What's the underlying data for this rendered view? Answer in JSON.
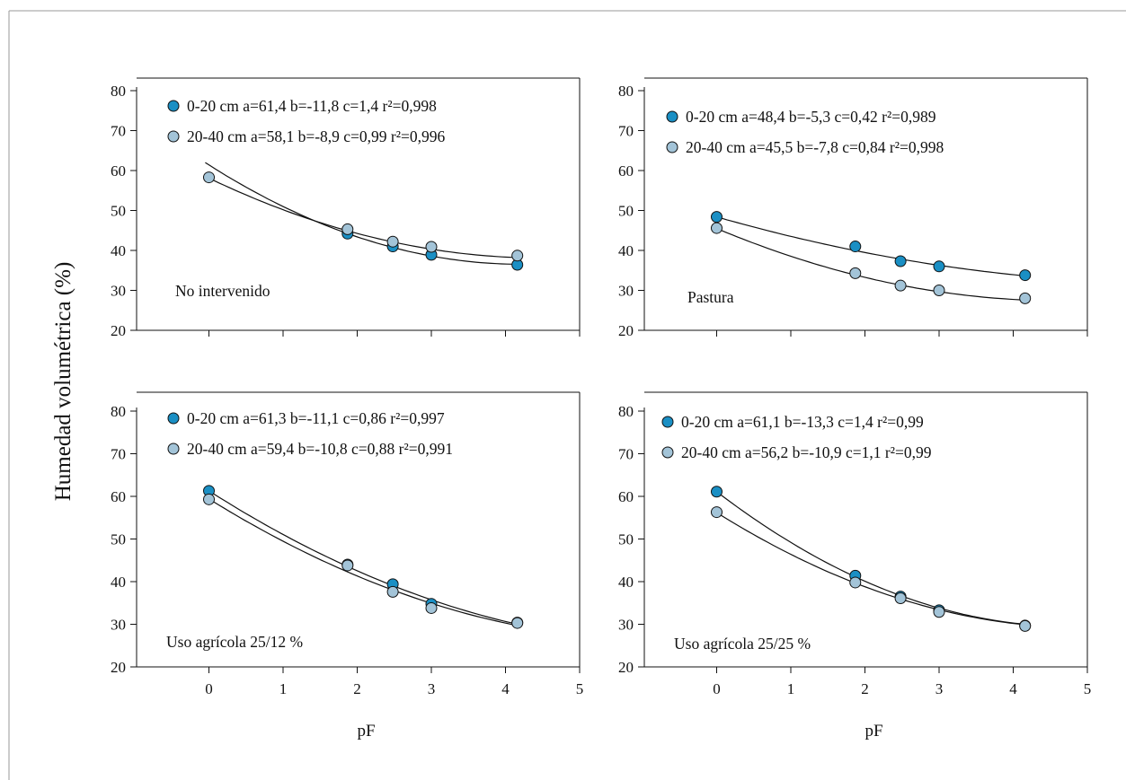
{
  "figure": {
    "ylabel": "Humedad volumétrica (%)"
  },
  "colors": {
    "series_0_20": "#1a8fc4",
    "series_20_40": "#a3c4d8",
    "curve": "#111111",
    "marker_edge": "#111111"
  },
  "chart_data": [
    {
      "type": "scatter",
      "label": "No intervenido",
      "xlabel": "",
      "xlim": [
        -1,
        5
      ],
      "ylim": [
        20,
        80
      ],
      "xticks": [
        0,
        1,
        2,
        3,
        4,
        5
      ],
      "yticks": [
        20,
        30,
        40,
        50,
        60,
        70,
        80
      ],
      "show_xtick_labels": false,
      "legend_position": "top-left",
      "series": [
        {
          "name": "0-20 cm",
          "legend_text": "0-20 cm a=61,4  b=-11,8  c=1,4  r²=0,998",
          "color": "#1a8fc4",
          "x": [
            1.87,
            2.48,
            3.0,
            4.16
          ],
          "y": [
            44.2,
            41.0,
            38.9,
            36.4
          ],
          "fit": {
            "a": 61.4,
            "b": -11.8,
            "c": 1.4,
            "r2": 0.998
          }
        },
        {
          "name": "20-40 cm",
          "legend_text": "20-40 cm  a=58,1  b=-8,9  c=0,99  r²=0,996",
          "color": "#a3c4d8",
          "x": [
            0,
            1.87,
            2.48,
            3.0,
            4.16
          ],
          "y": [
            58.3,
            45.3,
            42.2,
            40.9,
            38.7
          ],
          "fit": {
            "a": 58.1,
            "b": -8.9,
            "c": 0.99,
            "r2": 0.996
          }
        }
      ]
    },
    {
      "type": "scatter",
      "label": "Pastura",
      "xlabel": "",
      "xlim": [
        -1,
        5
      ],
      "ylim": [
        20,
        80
      ],
      "xticks": [
        0,
        1,
        2,
        3,
        4,
        5
      ],
      "yticks": [
        20,
        30,
        40,
        50,
        60,
        70,
        80
      ],
      "show_xtick_labels": false,
      "legend_position": "top-left",
      "series": [
        {
          "name": "0-20 cm",
          "legend_text": "0-20 cm  a=48,4  b=-5,3  c=0,42  r²=0,989",
          "color": "#1a8fc4",
          "x": [
            0,
            1.87,
            2.48,
            3.0,
            4.16
          ],
          "y": [
            48.4,
            41.0,
            37.3,
            36.0,
            33.8
          ],
          "fit": {
            "a": 48.4,
            "b": -5.3,
            "c": 0.42,
            "r2": 0.989
          }
        },
        {
          "name": "20-40 cm",
          "legend_text": "20-40 cm  a=45,5  b=-7,8  c=0,84  r²=0,998",
          "color": "#a3c4d8",
          "x": [
            0,
            1.87,
            2.48,
            3.0,
            4.16
          ],
          "y": [
            45.6,
            34.3,
            31.2,
            30.0,
            28.0
          ],
          "fit": {
            "a": 45.5,
            "b": -7.8,
            "c": 0.84,
            "r2": 0.998
          }
        }
      ]
    },
    {
      "type": "scatter",
      "label": "Uso agrícola 25/12 %",
      "xlabel": "pF",
      "xlim": [
        -1,
        5
      ],
      "ylim": [
        20,
        80
      ],
      "xticks": [
        0,
        1,
        2,
        3,
        4,
        5
      ],
      "yticks": [
        20,
        30,
        40,
        50,
        60,
        70,
        80
      ],
      "show_xtick_labels": true,
      "legend_position": "top-left",
      "series": [
        {
          "name": "0-20 cm",
          "legend_text": "0-20 cm  a=61,3  b=-11,1  c=0,86  r²=0,997",
          "color": "#1a8fc4",
          "x": [
            0,
            1.87,
            2.48,
            3.0,
            4.16
          ],
          "y": [
            61.3,
            44.0,
            39.4,
            34.8,
            30.4
          ],
          "fit": {
            "a": 61.3,
            "b": -11.1,
            "c": 0.86,
            "r2": 0.997
          }
        },
        {
          "name": "20-40 cm",
          "legend_text": "20-40 cm  a=59,4  b=-10,8  c=0,88  r²=0,991",
          "color": "#a3c4d8",
          "x": [
            0,
            1.87,
            2.48,
            3.0,
            4.16
          ],
          "y": [
            59.3,
            43.8,
            37.6,
            33.8,
            30.3
          ],
          "fit": {
            "a": 59.4,
            "b": -10.8,
            "c": 0.88,
            "r2": 0.991
          }
        }
      ]
    },
    {
      "type": "scatter",
      "label": "Uso agrícola 25/25 %",
      "xlabel": "pF",
      "xlim": [
        -1,
        5
      ],
      "ylim": [
        20,
        80
      ],
      "xticks": [
        0,
        1,
        2,
        3,
        4,
        5
      ],
      "yticks": [
        20,
        30,
        40,
        50,
        60,
        70,
        80
      ],
      "show_xtick_labels": true,
      "legend_position": "top-left",
      "series": [
        {
          "name": "0-20 cm",
          "legend_text": "0-20 cm a=61,1  b=-13,3  c=1,4  r²=0,99",
          "color": "#1a8fc4",
          "x": [
            0,
            1.87,
            2.48,
            3.0,
            4.16
          ],
          "y": [
            61.1,
            41.4,
            36.5,
            33.3,
            29.7
          ],
          "fit": {
            "a": 61.1,
            "b": -13.3,
            "c": 1.4,
            "r2": 0.99
          }
        },
        {
          "name": "20-40 cm",
          "legend_text": "20-40 cm  a=56,2  b=-10,9  c=1,1  r²=0,99",
          "color": "#a3c4d8",
          "x": [
            0,
            1.87,
            2.48,
            3.0,
            4.16
          ],
          "y": [
            56.3,
            39.8,
            36.1,
            32.9,
            29.6
          ],
          "fit": {
            "a": 56.2,
            "b": -10.9,
            "c": 1.1,
            "r2": 0.99
          }
        }
      ]
    }
  ]
}
